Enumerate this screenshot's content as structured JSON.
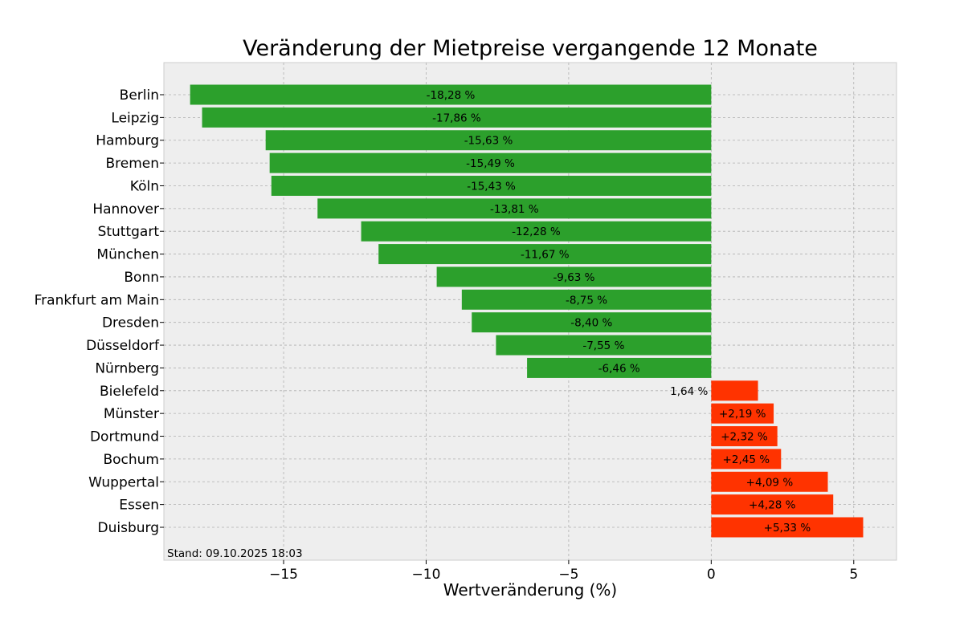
{
  "chart_data": {
    "type": "bar",
    "orientation": "horizontal",
    "title": "Veränderung der Mietpreise vergangende 12 Monate",
    "xlabel": "Wertveränderung (%)",
    "ylabel": "",
    "xlim": [
      -19.2,
      6.5
    ],
    "xticks": [
      -15,
      -10,
      -5,
      0,
      5
    ],
    "xtick_labels": [
      "−15",
      "−10",
      "−5",
      "0",
      "5"
    ],
    "grid": true,
    "colors": {
      "negative": "#2ca02c",
      "positive": "#ff3300",
      "background": "#eeeeee"
    },
    "categories": [
      "Berlin",
      "Leipzig",
      "Hamburg",
      "Bremen",
      "Köln",
      "Hannover",
      "Stuttgart",
      "München",
      "Bonn",
      "Frankfurt am Main",
      "Dresden",
      "Düsseldorf",
      "Nürnberg",
      "Bielefeld",
      "Münster",
      "Dortmund",
      "Bochum",
      "Wuppertal",
      "Essen",
      "Duisburg"
    ],
    "values": [
      -18.28,
      -17.86,
      -15.63,
      -15.49,
      -15.43,
      -13.81,
      -12.28,
      -11.67,
      -9.63,
      -8.75,
      -8.4,
      -7.55,
      -6.46,
      1.64,
      2.19,
      2.32,
      2.45,
      4.09,
      4.28,
      5.33
    ],
    "data_labels": [
      "-18,28 %",
      "-17,86 %",
      "-15,63 %",
      "-15,49 %",
      "-15,43 %",
      "-13,81 %",
      "-12,28 %",
      "-11,67 %",
      "-9,63 %",
      "-8,75 %",
      "-8,40 %",
      "-7,55 %",
      "-6,46 %",
      "1,64 %",
      "+2,19 %",
      "+2,32 %",
      "+2,45 %",
      "+4,09 %",
      "+4,28 %",
      "+5,33 %"
    ],
    "annotation": "Stand: 09.10.2025 18:03"
  }
}
